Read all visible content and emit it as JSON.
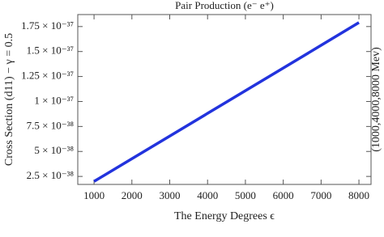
{
  "chart_data": {
    "type": "line",
    "title": "Pair Production (e⁻ e⁺)",
    "y_label": "Cross Section (d11) − γ = 0.5",
    "y2_label": "(1000,4000,8000 Mev)",
    "x_label": "The Energy Degrees ϵ",
    "x": [
      1000,
      2000,
      3000,
      4000,
      5000,
      6000,
      7000,
      8000
    ],
    "series": [
      {
        "name": "Pair Production",
        "color": "#2233dd",
        "values": [
          2e-38,
          4.27e-38,
          6.54e-38,
          8.81e-38,
          1.108e-37,
          1.335e-37,
          1.562e-37,
          1.79e-37
        ]
      }
    ],
    "xlim": [
      570,
      8320
    ],
    "xticks": [
      1000,
      2000,
      3000,
      4000,
      5000,
      6000,
      7000,
      8000
    ],
    "ylim": [
      1.7e-38,
      1.87e-37
    ],
    "yticks": [
      {
        "value": 2.5e-38,
        "label": "2.5 × 10⁻³⁸"
      },
      {
        "value": 5e-38,
        "label": "5 × 10⁻³⁸"
      },
      {
        "value": 7.5e-38,
        "label": "7.5 × 10⁻³⁸"
      },
      {
        "value": 1e-37,
        "label": "1 × 10⁻³⁷"
      },
      {
        "value": 1.25e-37,
        "label": "1.25 × 10⁻³⁷"
      },
      {
        "value": 1.5e-37,
        "label": "1.5 × 10⁻³⁷"
      },
      {
        "value": 1.75e-37,
        "label": "1.75 × 10⁻³⁷"
      }
    ],
    "grid": false
  }
}
